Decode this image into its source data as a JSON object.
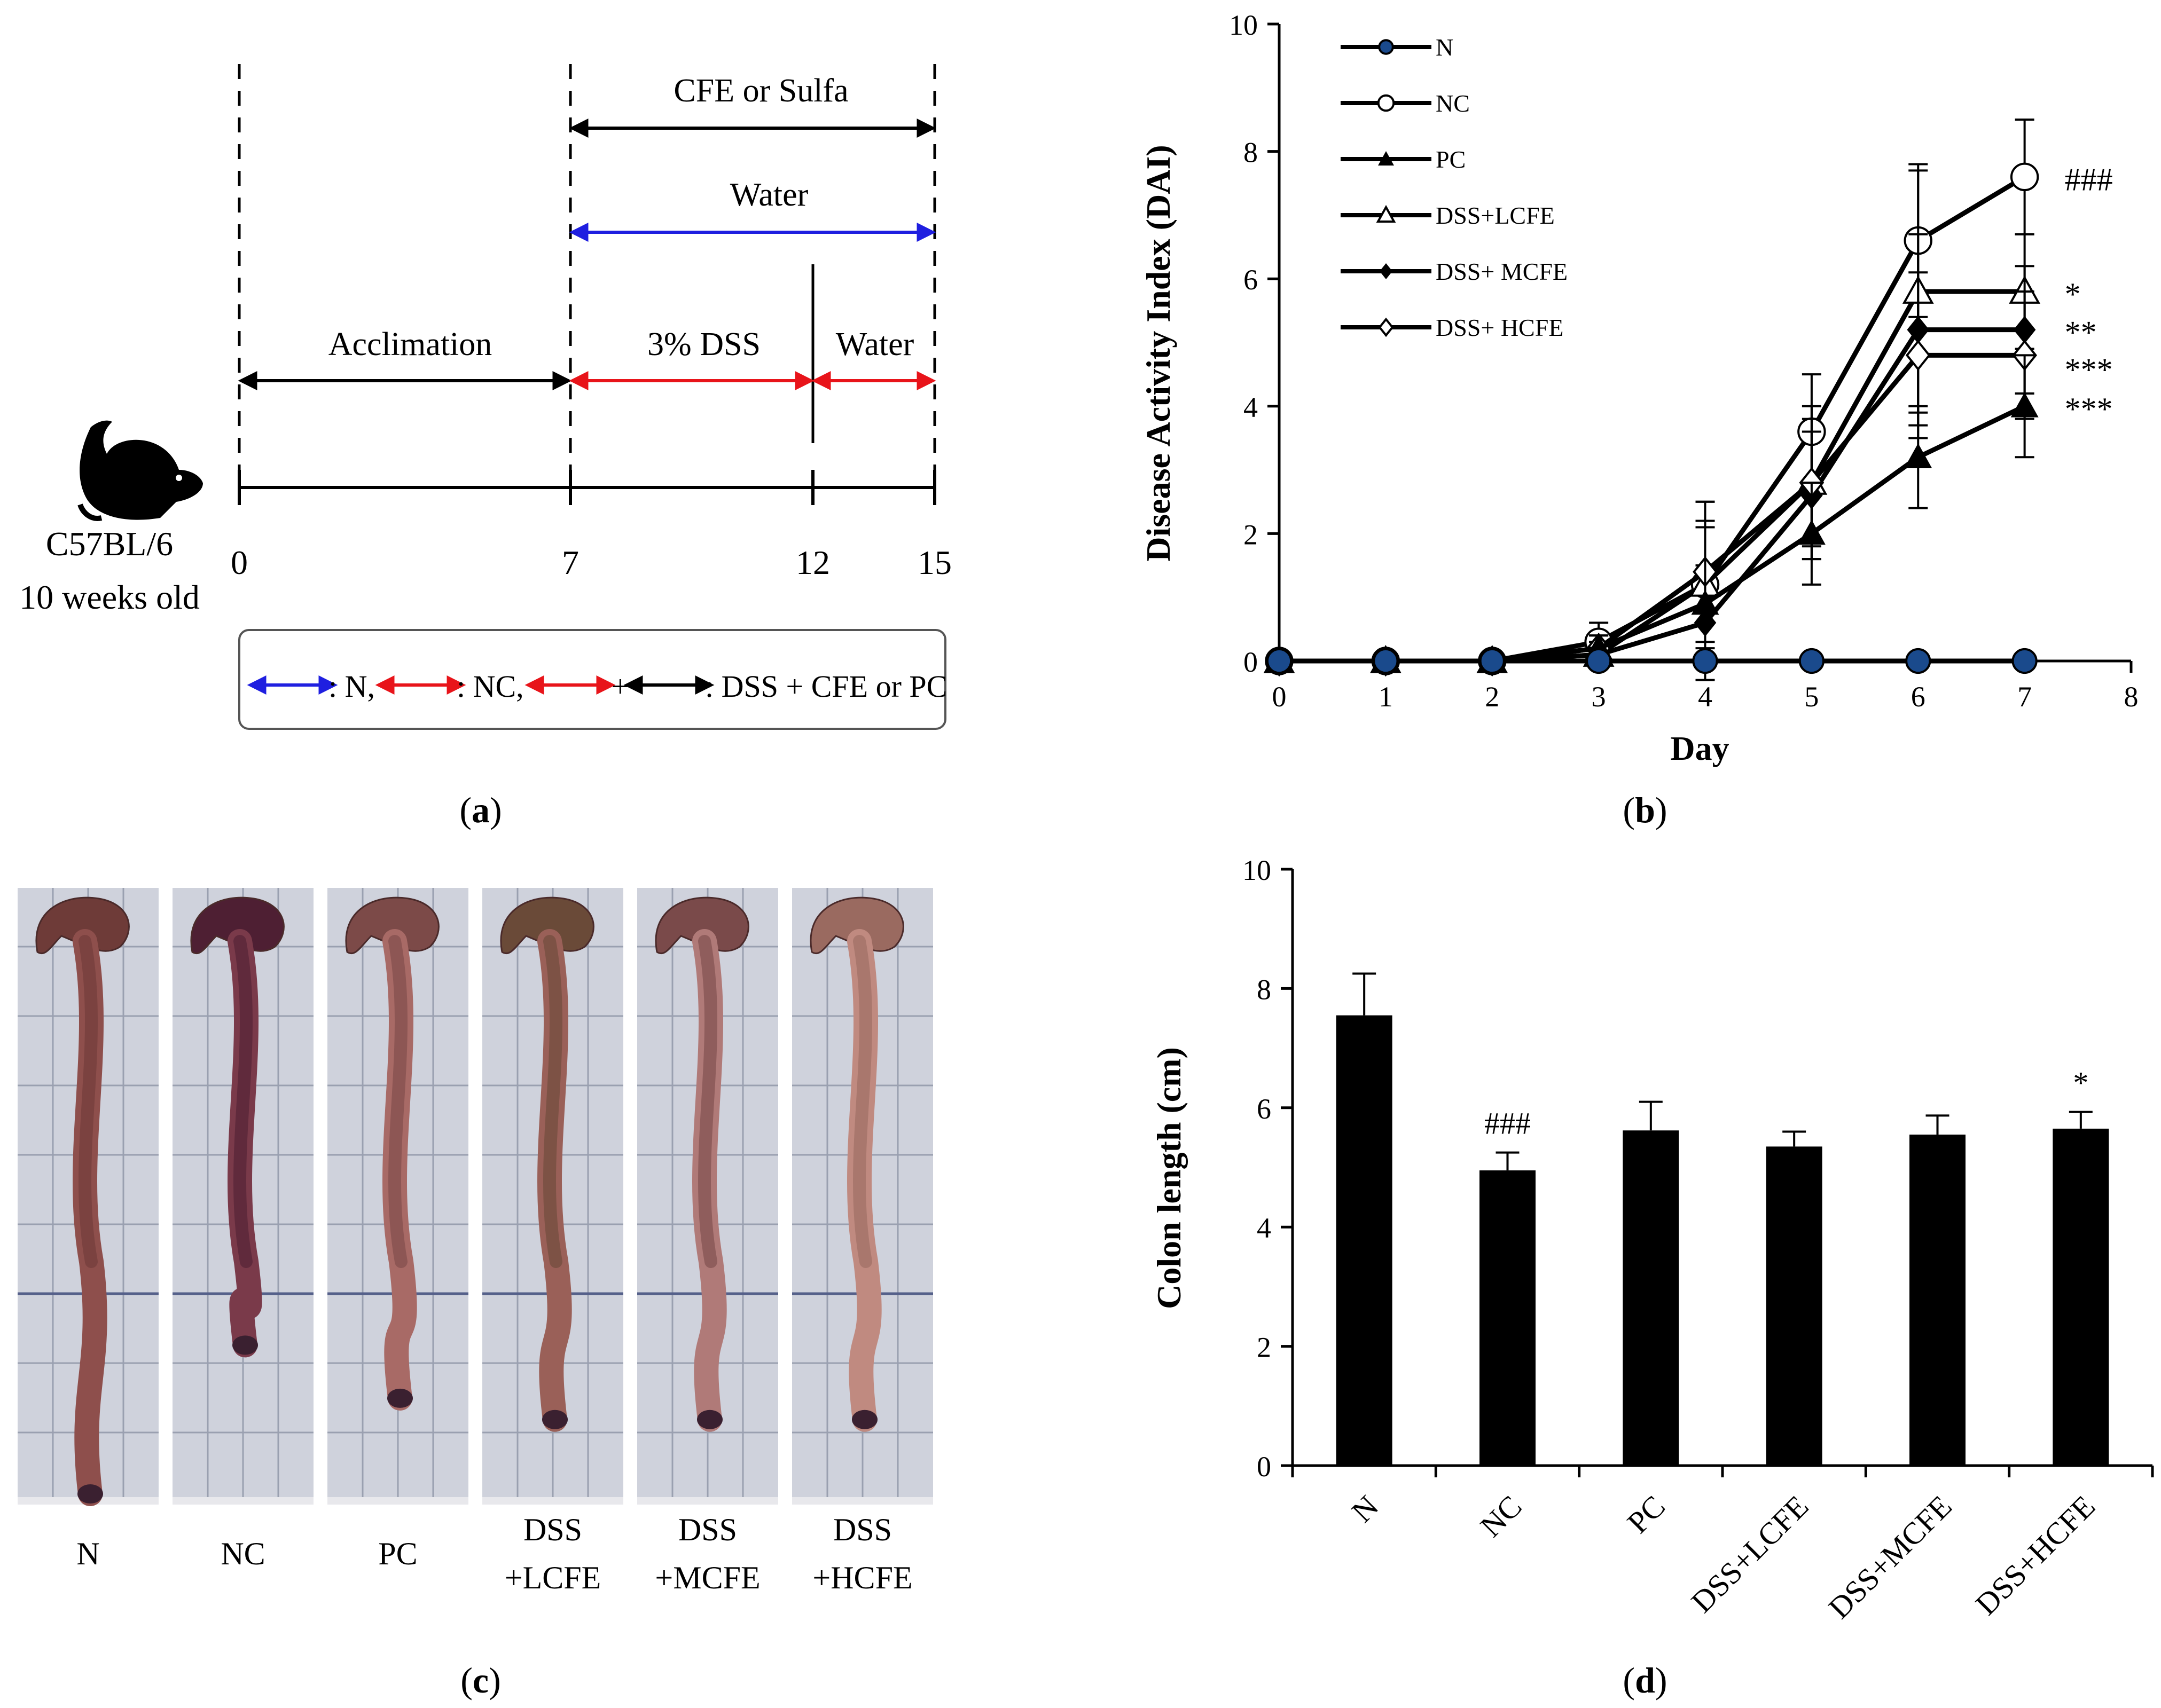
{
  "panel_a": {
    "label": "(a)",
    "label_bold": "a",
    "mouse_strain": "C57BL/6",
    "mouse_age": "10 weeks old",
    "ticks": [
      "0",
      "7",
      "12",
      "15"
    ],
    "phase_cfe": "CFE or Sulfa",
    "phase_water_top": "Water",
    "phase_acclimation": "Acclimation",
    "phase_dss": "3% DSS",
    "phase_water_bottom": "Water",
    "legend": {
      "n": ": N,",
      "nc": ": NC,",
      "plus": "+",
      "dss": ": DSS + CFE or PC"
    },
    "colors": {
      "blue": "#1f1fe0",
      "red": "#e8141a",
      "black": "#000000"
    }
  },
  "panel_b": {
    "label": "(b)",
    "label_bold": "b"
  },
  "panel_c": {
    "label": "(c)",
    "label_bold": "c",
    "photos": [
      {
        "line1": "N",
        "line2": ""
      },
      {
        "line1": "NC",
        "line2": ""
      },
      {
        "line1": "PC",
        "line2": ""
      },
      {
        "line1": "DSS",
        "line2": "+LCFE"
      },
      {
        "line1": "DSS",
        "line2": "+MCFE"
      },
      {
        "line1": "DSS",
        "line2": "+HCFE"
      }
    ]
  },
  "panel_d": {
    "label": "(d)",
    "label_bold": "d"
  },
  "chart_data": [
    {
      "type": "line",
      "panel": "b",
      "xlabel": "Day",
      "ylabel": "Disease Activity Index (DAI)",
      "xlim": [
        0,
        8
      ],
      "ylim": [
        0,
        10
      ],
      "xticks": [
        0,
        1,
        2,
        3,
        4,
        5,
        6,
        7,
        8
      ],
      "yticks": [
        0,
        2,
        4,
        6,
        8,
        10
      ],
      "legend_position": "top-left",
      "x": [
        0,
        1,
        2,
        3,
        4,
        5,
        6,
        7
      ],
      "series": [
        {
          "name": "N",
          "marker": "circle-filled-blue",
          "values": [
            0,
            0,
            0,
            0,
            0,
            0,
            0,
            0
          ],
          "errors": [
            0,
            0,
            0,
            0,
            0,
            0,
            0,
            0
          ],
          "annotation": ""
        },
        {
          "name": "NC",
          "marker": "circle-open",
          "values": [
            0,
            0,
            0,
            0.3,
            1.2,
            3.6,
            6.6,
            7.6
          ],
          "errors": [
            0,
            0,
            0,
            0.3,
            1.3,
            0.9,
            1.2,
            0.9
          ],
          "annotation": "###"
        },
        {
          "name": "PC",
          "marker": "triangle-filled",
          "values": [
            0,
            0,
            0,
            0.2,
            0.9,
            2.0,
            3.2,
            4.0
          ],
          "errors": [
            0,
            0,
            0,
            0.2,
            1.2,
            0.8,
            0.8,
            0.8
          ],
          "annotation": "***"
        },
        {
          "name": "DSS+LCFE",
          "marker": "triangle-open",
          "values": [
            0,
            0,
            0,
            0.1,
            1.2,
            2.8,
            5.8,
            5.8
          ],
          "errors": [
            0,
            0,
            0,
            0.2,
            1.0,
            1.2,
            1.9,
            0.9
          ],
          "annotation": "*"
        },
        {
          "name": "DSS+ MCFE",
          "marker": "diamond-filled",
          "values": [
            0,
            0,
            0,
            0.1,
            0.6,
            2.6,
            5.2,
            5.2
          ],
          "errors": [
            0,
            0,
            0,
            0.2,
            0.9,
            1.0,
            1.5,
            1.0
          ],
          "annotation": "**"
        },
        {
          "name": "DSS+ HCFE",
          "marker": "diamond-open",
          "values": [
            0,
            0,
            0,
            0.2,
            1.4,
            2.8,
            4.8,
            4.8
          ],
          "errors": [
            0,
            0,
            0,
            0.2,
            1.1,
            1.0,
            1.3,
            1.0
          ],
          "annotation": "***"
        }
      ]
    },
    {
      "type": "bar",
      "panel": "d",
      "ylabel": "Colon length (cm)",
      "ylim": [
        0,
        10
      ],
      "yticks": [
        0,
        2,
        4,
        6,
        8,
        10
      ],
      "categories": [
        "N",
        "NC",
        "PC",
        "DSS+LCFE",
        "DSS+MCFE",
        "DSS+HCFE"
      ],
      "values": [
        7.55,
        4.95,
        5.62,
        5.35,
        5.55,
        5.65
      ],
      "errors": [
        0.7,
        0.3,
        0.48,
        0.25,
        0.32,
        0.28
      ],
      "annotations": [
        "",
        "###",
        "",
        "",
        "",
        "*"
      ]
    }
  ]
}
